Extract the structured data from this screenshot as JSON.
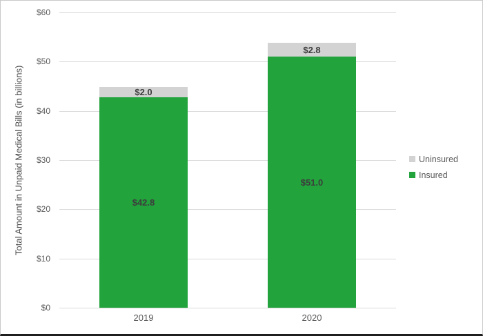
{
  "chart_data": {
    "type": "bar",
    "stacked": true,
    "ylabel": "Total Amount in Unpaid Medical Bills (in billions)",
    "categories": [
      "2019",
      "2020"
    ],
    "series": [
      {
        "name": "Insured",
        "color": "#22a33c",
        "values": [
          42.8,
          51.0
        ],
        "labels": [
          "$42.8",
          "$51.0"
        ]
      },
      {
        "name": "Uninsured",
        "color": "#d3d3d3",
        "values": [
          2.0,
          2.8
        ],
        "labels": [
          "$2.0",
          "$2.8"
        ]
      }
    ],
    "ylim": [
      0,
      60
    ],
    "ytick_step": 10,
    "yticks": [
      "$0",
      "$10",
      "$20",
      "$30",
      "$40",
      "$50",
      "$60"
    ],
    "grid": true,
    "legend_position": "right",
    "legend_order": [
      "Uninsured",
      "Insured"
    ]
  },
  "colors": {
    "gridline": "#d9d9d9",
    "axis_text": "#595959",
    "data_label_text": "#3d3d3d",
    "frame_border": "#c9c9c9",
    "frame_bottom": "#1f1f1f"
  }
}
